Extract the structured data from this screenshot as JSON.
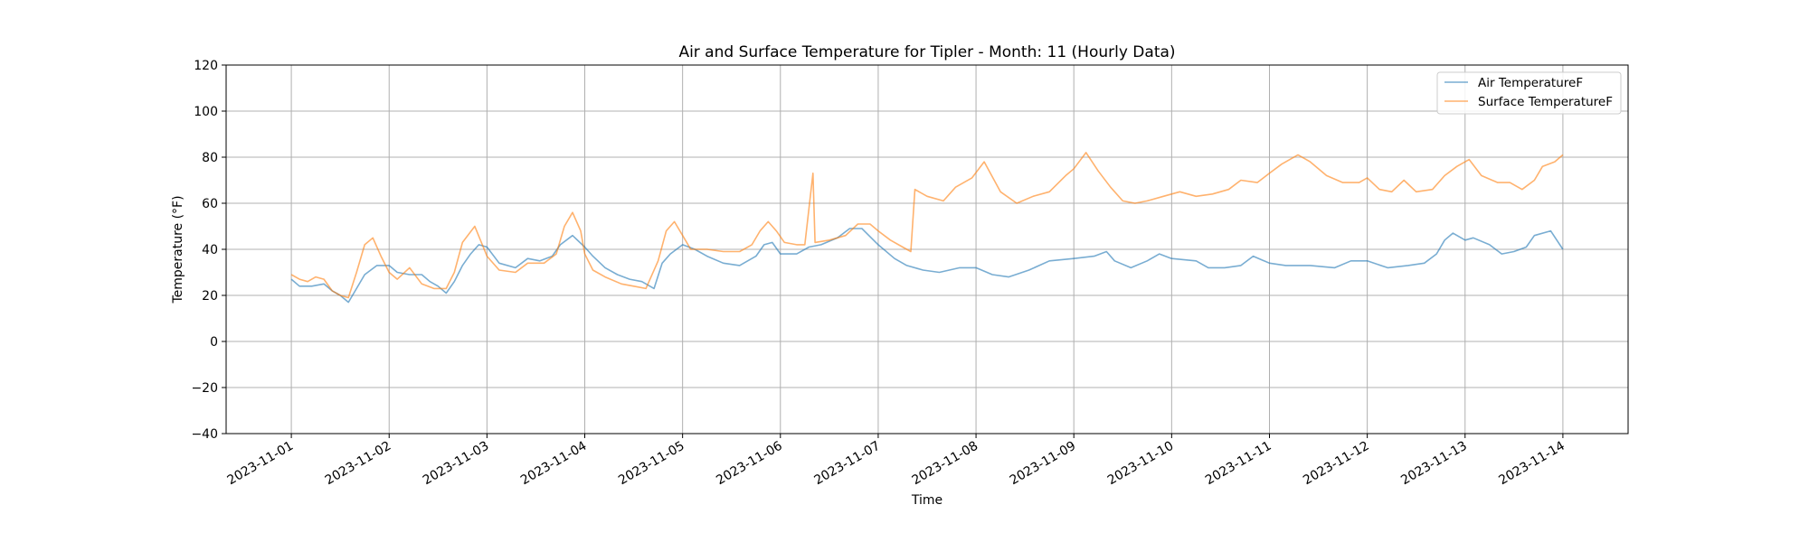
{
  "chart_data": {
    "type": "line",
    "title": "Air and Surface Temperature for Tipler - Month: 11 (Hourly Data)",
    "xlabel": "Time",
    "ylabel": "Temperature (°F)",
    "xlim": [
      "2023-10-31T08:00",
      "2023-11-14T16:00"
    ],
    "ylim": [
      -40,
      120
    ],
    "yticks": [
      -40,
      -20,
      0,
      20,
      40,
      60,
      80,
      100,
      120
    ],
    "xticks": [
      "2023-11-01",
      "2023-11-02",
      "2023-11-03",
      "2023-11-04",
      "2023-11-05",
      "2023-11-06",
      "2023-11-07",
      "2023-11-08",
      "2023-11-09",
      "2023-11-10",
      "2023-11-11",
      "2023-11-12",
      "2023-11-13",
      "2023-11-14"
    ],
    "grid": true,
    "legend": "top-right",
    "series": [
      {
        "name": "Air TemperatureF",
        "color": "#1f77b4",
        "points": [
          [
            "2023-11-01T00:00",
            27
          ],
          [
            "2023-11-01T02:00",
            24
          ],
          [
            "2023-11-01T05:00",
            24
          ],
          [
            "2023-11-01T08:00",
            25
          ],
          [
            "2023-11-01T10:00",
            22
          ],
          [
            "2023-11-01T12:00",
            20
          ],
          [
            "2023-11-01T14:00",
            17
          ],
          [
            "2023-11-01T16:00",
            23
          ],
          [
            "2023-11-01T18:00",
            29
          ],
          [
            "2023-11-01T21:00",
            33
          ],
          [
            "2023-11-02T00:00",
            33
          ],
          [
            "2023-11-02T02:00",
            30
          ],
          [
            "2023-11-02T05:00",
            29
          ],
          [
            "2023-11-02T08:00",
            29
          ],
          [
            "2023-11-02T10:00",
            26
          ],
          [
            "2023-11-02T12:00",
            24
          ],
          [
            "2023-11-02T14:00",
            21
          ],
          [
            "2023-11-02T16:00",
            26
          ],
          [
            "2023-11-02T18:00",
            33
          ],
          [
            "2023-11-02T20:00",
            38
          ],
          [
            "2023-11-02T22:00",
            42
          ],
          [
            "2023-11-03T00:00",
            41
          ],
          [
            "2023-11-03T03:00",
            34
          ],
          [
            "2023-11-03T07:00",
            32
          ],
          [
            "2023-11-03T10:00",
            36
          ],
          [
            "2023-11-03T13:00",
            35
          ],
          [
            "2023-11-03T16:00",
            37
          ],
          [
            "2023-11-03T18:00",
            42
          ],
          [
            "2023-11-03T21:00",
            46
          ],
          [
            "2023-11-04T00:00",
            41
          ],
          [
            "2023-11-04T02:00",
            37
          ],
          [
            "2023-11-04T05:00",
            32
          ],
          [
            "2023-11-04T08:00",
            29
          ],
          [
            "2023-11-04T11:00",
            27
          ],
          [
            "2023-11-04T14:00",
            26
          ],
          [
            "2023-11-04T17:00",
            23
          ],
          [
            "2023-11-04T19:00",
            34
          ],
          [
            "2023-11-04T21:00",
            38
          ],
          [
            "2023-11-05T00:00",
            42
          ],
          [
            "2023-11-05T03:00",
            40
          ],
          [
            "2023-11-05T06:00",
            37
          ],
          [
            "2023-11-05T10:00",
            34
          ],
          [
            "2023-11-05T14:00",
            33
          ],
          [
            "2023-11-05T18:00",
            37
          ],
          [
            "2023-11-05T20:00",
            42
          ],
          [
            "2023-11-05T22:00",
            43
          ],
          [
            "2023-11-06T00:00",
            38
          ],
          [
            "2023-11-06T04:00",
            38
          ],
          [
            "2023-11-06T07:00",
            41
          ],
          [
            "2023-11-06T10:00",
            42
          ],
          [
            "2023-11-06T14:00",
            45
          ],
          [
            "2023-11-06T17:00",
            49
          ],
          [
            "2023-11-06T20:00",
            49
          ],
          [
            "2023-11-07T00:00",
            42
          ],
          [
            "2023-11-07T04:00",
            36
          ],
          [
            "2023-11-07T07:00",
            33
          ],
          [
            "2023-11-07T11:00",
            31
          ],
          [
            "2023-11-07T15:00",
            30
          ],
          [
            "2023-11-07T20:00",
            32
          ],
          [
            "2023-11-08T00:00",
            32
          ],
          [
            "2023-11-08T04:00",
            29
          ],
          [
            "2023-11-08T08:00",
            28
          ],
          [
            "2023-11-08T13:00",
            31
          ],
          [
            "2023-11-08T18:00",
            35
          ],
          [
            "2023-11-09T00:00",
            36
          ],
          [
            "2023-11-09T05:00",
            37
          ],
          [
            "2023-11-09T08:00",
            39
          ],
          [
            "2023-11-09T10:00",
            35
          ],
          [
            "2023-11-09T14:00",
            32
          ],
          [
            "2023-11-09T18:00",
            35
          ],
          [
            "2023-11-09T21:00",
            38
          ],
          [
            "2023-11-10T00:00",
            36
          ],
          [
            "2023-11-10T06:00",
            35
          ],
          [
            "2023-11-10T09:00",
            32
          ],
          [
            "2023-11-10T13:00",
            32
          ],
          [
            "2023-11-10T17:00",
            33
          ],
          [
            "2023-11-10T20:00",
            37
          ],
          [
            "2023-11-11T00:00",
            34
          ],
          [
            "2023-11-11T04:00",
            33
          ],
          [
            "2023-11-11T10:00",
            33
          ],
          [
            "2023-11-11T16:00",
            32
          ],
          [
            "2023-11-11T20:00",
            35
          ],
          [
            "2023-11-12T00:00",
            35
          ],
          [
            "2023-11-12T05:00",
            32
          ],
          [
            "2023-11-12T10:00",
            33
          ],
          [
            "2023-11-12T14:00",
            34
          ],
          [
            "2023-11-12T17:00",
            38
          ],
          [
            "2023-11-12T19:00",
            44
          ],
          [
            "2023-11-12T21:00",
            47
          ],
          [
            "2023-11-13T00:00",
            44
          ],
          [
            "2023-11-13T02:00",
            45
          ],
          [
            "2023-11-13T06:00",
            42
          ],
          [
            "2023-11-13T09:00",
            38
          ],
          [
            "2023-11-13T12:00",
            39
          ],
          [
            "2023-11-13T15:00",
            41
          ],
          [
            "2023-11-13T17:00",
            46
          ],
          [
            "2023-11-13T21:00",
            48
          ],
          [
            "2023-11-14T00:00",
            40
          ]
        ]
      },
      {
        "name": "Surface TemperatureF",
        "color": "#ff7f0e",
        "points": [
          [
            "2023-11-01T00:00",
            29
          ],
          [
            "2023-11-01T02:00",
            27
          ],
          [
            "2023-11-01T04:00",
            26
          ],
          [
            "2023-11-01T06:00",
            28
          ],
          [
            "2023-11-01T08:00",
            27
          ],
          [
            "2023-11-01T10:00",
            22
          ],
          [
            "2023-11-01T12:00",
            20
          ],
          [
            "2023-11-01T14:00",
            19
          ],
          [
            "2023-11-01T16:00",
            30
          ],
          [
            "2023-11-01T18:00",
            42
          ],
          [
            "2023-11-01T20:00",
            45
          ],
          [
            "2023-11-01T22:00",
            37
          ],
          [
            "2023-11-02T00:00",
            30
          ],
          [
            "2023-11-02T02:00",
            27
          ],
          [
            "2023-11-02T05:00",
            32
          ],
          [
            "2023-11-02T08:00",
            25
          ],
          [
            "2023-11-02T11:00",
            23
          ],
          [
            "2023-11-02T14:00",
            23
          ],
          [
            "2023-11-02T16:00",
            30
          ],
          [
            "2023-11-02T18:00",
            43
          ],
          [
            "2023-11-02T21:00",
            50
          ],
          [
            "2023-11-03T00:00",
            37
          ],
          [
            "2023-11-03T03:00",
            31
          ],
          [
            "2023-11-03T07:00",
            30
          ],
          [
            "2023-11-03T10:00",
            34
          ],
          [
            "2023-11-03T14:00",
            34
          ],
          [
            "2023-11-03T17:00",
            38
          ],
          [
            "2023-11-03T19:00",
            50
          ],
          [
            "2023-11-03T21:00",
            56
          ],
          [
            "2023-11-03T23:00",
            48
          ],
          [
            "2023-11-04T00:00",
            38
          ],
          [
            "2023-11-04T02:00",
            31
          ],
          [
            "2023-11-04T05:00",
            28
          ],
          [
            "2023-11-04T09:00",
            25
          ],
          [
            "2023-11-04T12:00",
            24
          ],
          [
            "2023-11-04T15:00",
            23
          ],
          [
            "2023-11-04T18:00",
            35
          ],
          [
            "2023-11-04T20:00",
            48
          ],
          [
            "2023-11-04T22:00",
            52
          ],
          [
            "2023-11-05T00:00",
            46
          ],
          [
            "2023-11-05T02:00",
            40
          ],
          [
            "2023-11-05T06:00",
            40
          ],
          [
            "2023-11-05T10:00",
            39
          ],
          [
            "2023-11-05T14:00",
            39
          ],
          [
            "2023-11-05T17:00",
            42
          ],
          [
            "2023-11-05T19:00",
            48
          ],
          [
            "2023-11-05T21:00",
            52
          ],
          [
            "2023-11-05T23:00",
            48
          ],
          [
            "2023-11-06T01:00",
            43
          ],
          [
            "2023-11-06T04:00",
            42
          ],
          [
            "2023-11-06T06:00",
            42
          ],
          [
            "2023-11-06T08:00",
            73
          ],
          [
            "2023-11-06T08:30",
            43
          ],
          [
            "2023-11-06T12:00",
            44
          ],
          [
            "2023-11-06T16:00",
            46
          ],
          [
            "2023-11-06T19:00",
            51
          ],
          [
            "2023-11-06T22:00",
            51
          ],
          [
            "2023-11-07T00:00",
            48
          ],
          [
            "2023-11-07T03:00",
            44
          ],
          [
            "2023-11-07T06:00",
            41
          ],
          [
            "2023-11-07T08:00",
            39
          ],
          [
            "2023-11-07T09:00",
            66
          ],
          [
            "2023-11-07T12:00",
            63
          ],
          [
            "2023-11-07T16:00",
            61
          ],
          [
            "2023-11-07T19:00",
            67
          ],
          [
            "2023-11-07T23:00",
            71
          ],
          [
            "2023-11-08T02:00",
            78
          ],
          [
            "2023-11-08T06:00",
            65
          ],
          [
            "2023-11-08T10:00",
            60
          ],
          [
            "2023-11-08T14:00",
            63
          ],
          [
            "2023-11-08T18:00",
            65
          ],
          [
            "2023-11-08T22:00",
            72
          ],
          [
            "2023-11-09T00:00",
            75
          ],
          [
            "2023-11-09T03:00",
            82
          ],
          [
            "2023-11-09T06:00",
            74
          ],
          [
            "2023-11-09T09:00",
            67
          ],
          [
            "2023-11-09T12:00",
            61
          ],
          [
            "2023-11-09T15:00",
            60
          ],
          [
            "2023-11-09T18:00",
            61
          ],
          [
            "2023-11-09T22:00",
            63
          ],
          [
            "2023-11-10T02:00",
            65
          ],
          [
            "2023-11-10T06:00",
            63
          ],
          [
            "2023-11-10T10:00",
            64
          ],
          [
            "2023-11-10T14:00",
            66
          ],
          [
            "2023-11-10T17:00",
            70
          ],
          [
            "2023-11-10T21:00",
            69
          ],
          [
            "2023-11-11T00:00",
            73
          ],
          [
            "2023-11-11T03:00",
            77
          ],
          [
            "2023-11-11T07:00",
            81
          ],
          [
            "2023-11-11T10:00",
            78
          ],
          [
            "2023-11-11T14:00",
            72
          ],
          [
            "2023-11-11T18:00",
            69
          ],
          [
            "2023-11-11T22:00",
            69
          ],
          [
            "2023-11-12T00:00",
            71
          ],
          [
            "2023-11-12T03:00",
            66
          ],
          [
            "2023-11-12T06:00",
            65
          ],
          [
            "2023-11-12T09:00",
            70
          ],
          [
            "2023-11-12T12:00",
            65
          ],
          [
            "2023-11-12T16:00",
            66
          ],
          [
            "2023-11-12T19:00",
            72
          ],
          [
            "2023-11-12T22:00",
            76
          ],
          [
            "2023-11-13T01:00",
            79
          ],
          [
            "2023-11-13T04:00",
            72
          ],
          [
            "2023-11-13T08:00",
            69
          ],
          [
            "2023-11-13T11:00",
            69
          ],
          [
            "2023-11-13T14:00",
            66
          ],
          [
            "2023-11-13T17:00",
            70
          ],
          [
            "2023-11-13T19:00",
            76
          ],
          [
            "2023-11-13T22:00",
            78
          ],
          [
            "2023-11-14T00:00",
            81
          ]
        ]
      }
    ]
  }
}
